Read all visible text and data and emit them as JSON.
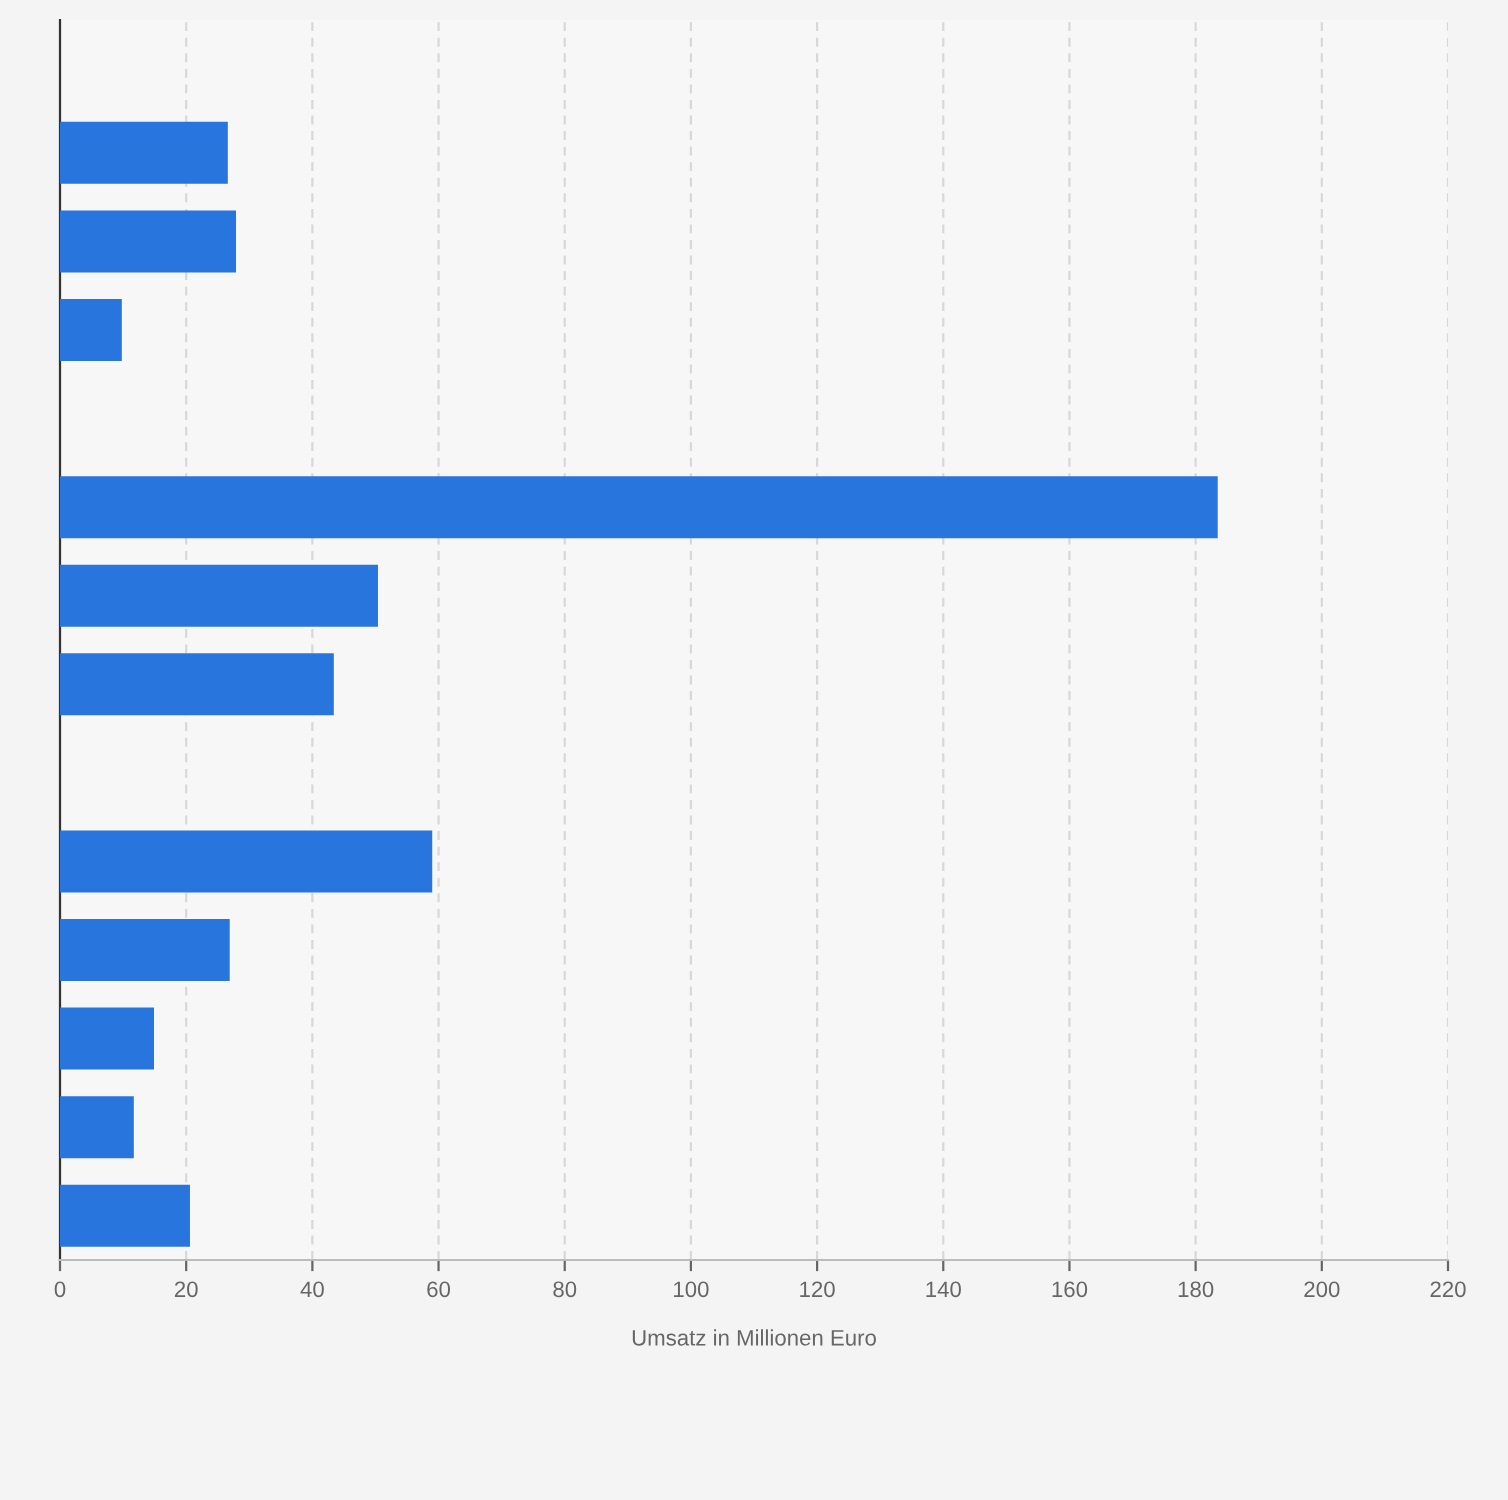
{
  "chart_data": {
    "type": "bar",
    "orientation": "horizontal",
    "xlabel": "Umsatz in Millionen Euro",
    "categories": [
      null,
      null,
      null,
      null,
      null,
      null,
      null,
      null,
      null,
      null,
      null,
      null,
      null,
      null
    ],
    "values": [
      null,
      26.6,
      27.9,
      9.8,
      null,
      183.5,
      50.4,
      43.4,
      null,
      59,
      26.9,
      14.9,
      11.7,
      20.6
    ],
    "color": "#2876dd",
    "xlim": [
      0,
      220
    ],
    "xticks": [
      0,
      20,
      40,
      60,
      80,
      100,
      120,
      140,
      160,
      180,
      200,
      220
    ],
    "grid": "x"
  }
}
